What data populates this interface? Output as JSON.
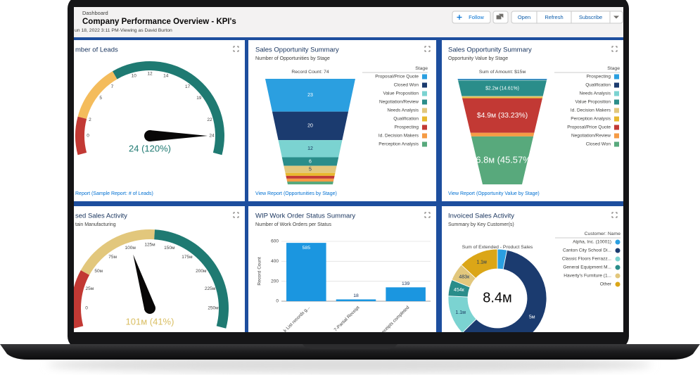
{
  "header": {
    "breadcrumb": "Dashboard",
    "title": "Company Performance Overview - KPI's",
    "subtitle": "un 18, 2022 3:11 PM·Viewing as David Burton",
    "buttons": [
      "Follow",
      "Open",
      "Refresh",
      "Subscribe"
    ]
  },
  "widgets": [
    {
      "type": "gauge",
      "title": "mber of Leads",
      "lim": [
        0,
        24
      ],
      "ticks": [
        0,
        2,
        5,
        7,
        10,
        12,
        14,
        17,
        19,
        22,
        24
      ],
      "bands": [
        {
          "to": 2,
          "color": "#c23934"
        },
        {
          "to": 8,
          "color": "#f4bc5c"
        },
        {
          "to": 24,
          "color": "#1f7a72"
        }
      ],
      "value": 24,
      "value_label": "24 (120%)",
      "value_color": "#1f7a72",
      "footer": "Report (Sample Report: # of Leads)"
    },
    {
      "type": "funnel",
      "title": "Sales Opportunity Summary",
      "subtitle": "Number of Opportunities by Stage",
      "summary": "Record Count: 74",
      "legend_title": "Stage",
      "categories": [
        "Proposal/Price Quote",
        "Closed Won",
        "Value Proposition",
        "Negotiation/Review",
        "Needs Analysis",
        "Qualification",
        "Prospecting",
        "Id. Decision Makers",
        "Perception Analysis"
      ],
      "colors": [
        "#2b9fe0",
        "#1b3b6f",
        "#7bd3d1",
        "#2a8d8a",
        "#e2c77c",
        "#e8b82d",
        "#c23934",
        "#f59b45",
        "#58a97c"
      ],
      "values": [
        23,
        20,
        12,
        6,
        5,
        2,
        2,
        2,
        2
      ],
      "value_labels": [
        "23",
        "20",
        "12",
        "6",
        "5",
        null,
        null,
        null,
        null
      ],
      "footer": "View Report (Opportunities by Stage)"
    },
    {
      "type": "funnel",
      "title": "Sales Opportunity Summary",
      "subtitle": "Opportunity Value by Stage",
      "summary": "Sum of Amount: $15м",
      "legend_title": "Stage",
      "categories": [
        "Prospecting",
        "Qualification",
        "Needs Analysis",
        "Value Proposition",
        "Id. Decision Makers",
        "Perception Analysis",
        "Proposal/Price Quote",
        "Negotiation/Review",
        "Closed Won"
      ],
      "colors": [
        "#2b9fe0",
        "#1b3b6f",
        "#7bd3d1",
        "#2a8d8a",
        "#e2c77c",
        "#e8b82d",
        "#c23934",
        "#f59b45",
        "#58a97c"
      ],
      "values": [
        100000,
        80000,
        80000,
        2200000,
        150000,
        150000,
        4900000,
        500000,
        6800000
      ],
      "value_labels": [
        null,
        null,
        null,
        "$2.2м (14.61%)",
        null,
        null,
        "$4.9м (33.23%)",
        null,
        "$6.8м (45.57%)"
      ],
      "footer": "View Report (Opportunity Value by Stage)"
    },
    {
      "type": "gauge",
      "title": "sed Sales Activity",
      "subtitle": "tain Manufacturing",
      "lim": [
        0,
        250000000
      ],
      "ticks": [
        0,
        {
          "value": 25000000,
          "label": "25м"
        },
        {
          "value": 50000000,
          "label": "50м"
        },
        {
          "value": 75000000,
          "label": "75м"
        },
        {
          "value": 100000000,
          "label": "100м"
        },
        {
          "value": 125000000,
          "label": "125м"
        },
        {
          "value": 150000000,
          "label": "150м"
        },
        {
          "value": 175000000,
          "label": "175м"
        },
        {
          "value": 200000000,
          "label": "200м"
        },
        {
          "value": 225000000,
          "label": "225м"
        },
        {
          "value": 250000000,
          "label": "250м"
        }
      ],
      "bands": [
        {
          "to": 40000000,
          "color": "#c23934"
        },
        {
          "to": 130000000,
          "color": "#e2c77c"
        },
        {
          "to": 250000000,
          "color": "#1f7a72"
        }
      ],
      "value": 101000000,
      "value_label": "101м (41%)",
      "value_color": "#d9be62"
    },
    {
      "type": "bar",
      "title": "WIP Work Order Status Summary",
      "subtitle": "Number of Work Orders per Status",
      "ylabel": "Record Count",
      "categories": [
        "k List records g...",
        "7-Partial Receipt",
        "eceipts completed"
      ],
      "values": [
        585,
        18,
        139
      ],
      "color": "#1b96e0",
      "ylim": [
        0,
        600
      ],
      "yticks": [
        0,
        200,
        400,
        600
      ],
      "grid": true
    },
    {
      "type": "donut",
      "title": "Invoiced Sales Activity",
      "subtitle": "Summary by Key Customer(s)",
      "chart_label": "Sum of Extended - Product Sales",
      "center_label": "8.4м",
      "legend_title": "Customer: Name",
      "categories": [
        "Alpha, Inc. (10001)",
        "Canton City School Di...",
        "Classic Floors Ferrazz...",
        "General Equipment M...",
        "Haverty's Furniture (1...",
        "Other"
      ],
      "colors": [
        "#2b9fe0",
        "#1b3b6f",
        "#7bd3d1",
        "#2a8d8a",
        "#e2c77c",
        "#dba617"
      ],
      "values": [
        263000,
        5000000,
        1100000,
        454000,
        483000,
        1100000
      ],
      "value_labels": [
        null,
        "5м",
        "1.1м",
        "454к",
        "483к",
        "1.1м"
      ]
    }
  ]
}
